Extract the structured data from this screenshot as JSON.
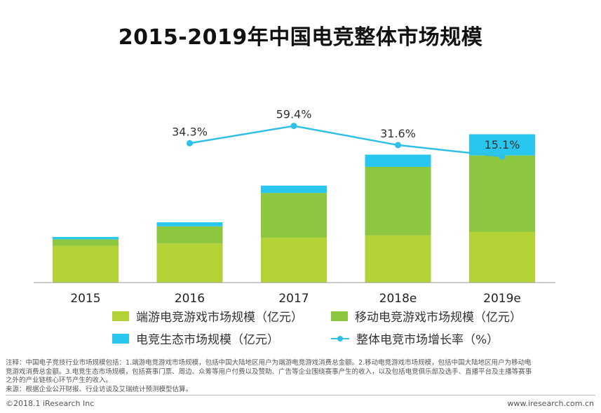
{
  "colors": {
    "pc_game": "#b2d235",
    "mobile_game": "#8dc63f",
    "ecosystem": "#29c7ef",
    "growth_line": "#2fc0e6",
    "axis": "#999999"
  },
  "chart_data": {
    "type": "bar",
    "stacked": true,
    "title": "2015-2019年中国电竞整体市场规模",
    "categories": [
      "2015",
      "2016",
      "2017",
      "2018e",
      "2019e"
    ],
    "series": [
      {
        "name": "端游电竞游戏市场规模（亿元）",
        "values": [
          45,
          48,
          55,
          58,
          62
        ]
      },
      {
        "name": "移动电竞游戏市场规模（亿元）",
        "values": [
          8,
          21,
          55,
          84,
          94
        ]
      },
      {
        "name": "电竞生态市场规模（亿元）",
        "values": [
          3,
          5,
          9,
          15,
          26
        ]
      }
    ],
    "line": {
      "name": "整体电竞市场增长率（%）",
      "categories": [
        "2016",
        "2017",
        "2018e",
        "2019e"
      ],
      "values": [
        34.3,
        59.4,
        31.6,
        15.1
      ],
      "labels": [
        "34.3%",
        "59.4%",
        "31.6%",
        "15.1%"
      ]
    },
    "ylim": [
      0,
      185
    ],
    "line_ylim": [
      0,
      120
    ]
  },
  "legend": {
    "pc": "端游电竞游戏市场规模（亿元）",
    "mobile": "移动电竞游戏市场规模（亿元）",
    "eco": "电竞生态市场规模（亿元）",
    "growth": "整体电竞市场增长率（%）"
  },
  "note": {
    "line1": "注释：中国电子竞技行业市场规模包括：1.端游电竞游戏市场规模，包括中国大陆地区用户为端游电竞游戏消费总金额。2.移动电竞游戏市场规模，包括中国大陆地区用户为移动电",
    "line2": "竞游戏消费总金额。3.电竞生态市场规模，包括赛事门票、周边、众筹等用户付费以及赞助、广告等企业围绕赛事产生的收入，以及包括电竞俱乐部及选手、直播平台及主播等赛事",
    "line3": "之外的产业链核心环节产生的收入。",
    "source": "来源：根据企业公开财报、行业访谈及艾瑞统计预测模型估算。"
  },
  "footer": {
    "copyright": "©2018.1 iResearch Inc",
    "website": "www.iresearch.com.cn"
  }
}
